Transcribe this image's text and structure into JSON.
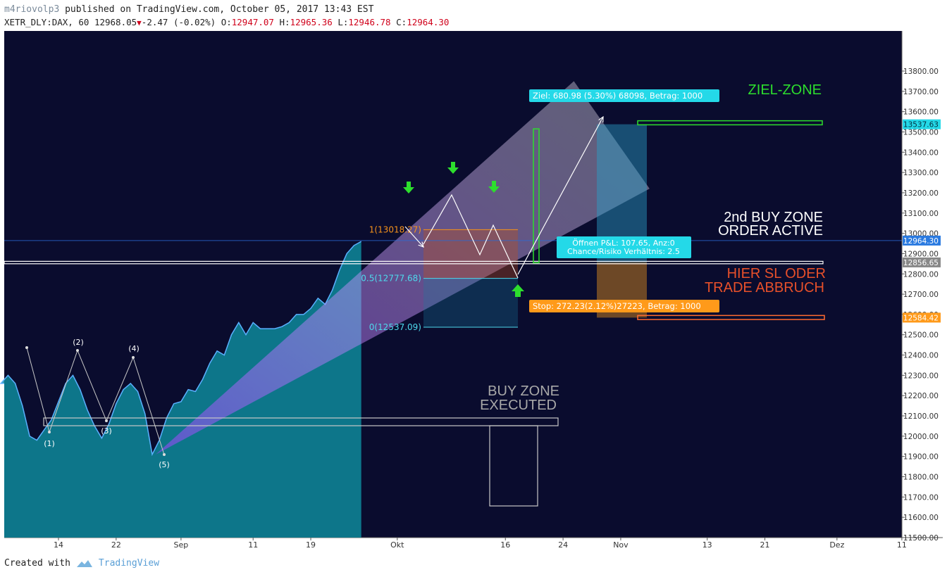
{
  "header": {
    "user": "m4riovolp3",
    "published_text": " published on TradingView.com, October 05, 2017 13:43 EST",
    "symbol": "XETR_DLY:DAX, 60",
    "last": "12968.05",
    "change": "-2.47 (-0.02%)",
    "o_label": "O:",
    "o_value": "12947.07",
    "h_label": "H:",
    "h_value": "12965.36",
    "l_label": "L:",
    "l_value": "12946.78",
    "c_label": "C:",
    "c_value": "12964.30"
  },
  "footer": {
    "created_with": "Created with",
    "brand": "TradingView"
  },
  "colors": {
    "background": "#0a0c2e",
    "area": "#0e8a9a",
    "fib_orange": "#f7931a",
    "fib_cyan": "#4dd9ec",
    "green": "#2dde2d",
    "stop": "#ff9a1a",
    "target": "#24d9e8"
  },
  "chart_data": {
    "type": "area",
    "title": "",
    "xlabel": "",
    "ylabel": "",
    "ylim": [
      11400,
      13900
    ],
    "price_ticks": [
      13800,
      13700,
      13600,
      13500,
      13400,
      13300,
      13200,
      13100,
      13000,
      12900,
      12800,
      12700,
      12600,
      12500,
      12400,
      12300,
      12200,
      12100,
      12000,
      11900,
      11800,
      11700,
      11600,
      11500
    ],
    "price_tick_labels": [
      "13800.00",
      "13700.00",
      "13600.00",
      "13500.00",
      "13400.00",
      "13300.00",
      "13200.00",
      "13100.00",
      "13000.00",
      "12900.00",
      "12800.00",
      "12700.00",
      "12600.00",
      "12500.00",
      "12400.00",
      "12300.00",
      "12200.00",
      "12100.00",
      "12000.00",
      "11900.00",
      "11800.00",
      "11700.00",
      "11600.00",
      "11500.00"
    ],
    "time_ticks": [
      {
        "label": "14",
        "day": 14
      },
      {
        "label": "22",
        "day": 22
      },
      {
        "label": "Sep",
        "day": 31
      },
      {
        "label": "11",
        "day": 41
      },
      {
        "label": "19",
        "day": 49
      },
      {
        "label": "Okt",
        "day": 61
      },
      {
        "label": "16",
        "day": 76
      },
      {
        "label": "24",
        "day": 84
      },
      {
        "label": "Nov",
        "day": 92
      },
      {
        "label": "13",
        "day": 104
      },
      {
        "label": "21",
        "day": 112
      },
      {
        "label": "Dez",
        "day": 122
      },
      {
        "label": "11",
        "day": 131
      }
    ],
    "series": [
      {
        "values": [
          [
            6,
            12260
          ],
          [
            7,
            12300
          ],
          [
            8,
            12260
          ],
          [
            9,
            12150
          ],
          [
            10,
            12000
          ],
          [
            11,
            11980
          ],
          [
            12,
            12030
          ],
          [
            13,
            12080
          ],
          [
            14,
            12170
          ],
          [
            15,
            12260
          ],
          [
            16,
            12300
          ],
          [
            17,
            12230
          ],
          [
            18,
            12130
          ],
          [
            19,
            12050
          ],
          [
            20,
            11990
          ],
          [
            21,
            12060
          ],
          [
            22,
            12160
          ],
          [
            23,
            12230
          ],
          [
            24,
            12260
          ],
          [
            25,
            12220
          ],
          [
            26,
            12110
          ],
          [
            27,
            11910
          ],
          [
            28,
            11980
          ],
          [
            29,
            12090
          ],
          [
            30,
            12160
          ],
          [
            31,
            12170
          ],
          [
            32,
            12230
          ],
          [
            33,
            12220
          ],
          [
            34,
            12280
          ],
          [
            35,
            12360
          ],
          [
            36,
            12420
          ],
          [
            37,
            12400
          ],
          [
            38,
            12500
          ],
          [
            39,
            12560
          ],
          [
            40,
            12500
          ],
          [
            41,
            12560
          ],
          [
            42,
            12530
          ],
          [
            43,
            12530
          ],
          [
            44,
            12530
          ],
          [
            45,
            12540
          ],
          [
            46,
            12560
          ],
          [
            47,
            12600
          ],
          [
            48,
            12600
          ],
          [
            49,
            12630
          ],
          [
            50,
            12680
          ],
          [
            51,
            12650
          ],
          [
            52,
            12720
          ],
          [
            53,
            12820
          ],
          [
            54,
            12900
          ],
          [
            55,
            12940
          ],
          [
            56,
            12960
          ]
        ]
      }
    ],
    "current_price": 12964.3,
    "labels": [
      {
        "text": "13537.63",
        "price": 13537.63
      },
      {
        "text": "12964.30",
        "price": 12964.3
      },
      {
        "text": "12856.65",
        "price": 12856.65
      },
      {
        "text": "12584.42",
        "price": 12584.42
      }
    ],
    "fib_levels": [
      {
        "label": "1(13018.27)",
        "price": 13018.27
      },
      {
        "label": "0.5(12777.68)",
        "price": 12777.68
      },
      {
        "label": "0(12537.09)",
        "price": 12537.09
      }
    ],
    "waves": [
      {
        "label": "(1)",
        "day": 11,
        "price": 11920
      },
      {
        "label": "(2)",
        "day": 16,
        "price": 12320
      },
      {
        "label": "(3)",
        "day": 20,
        "price": 11980
      },
      {
        "label": "(4)",
        "day": 24,
        "price": 12290
      },
      {
        "label": "(5)",
        "day": 27,
        "price": 11810
      }
    ],
    "zone_texts": {
      "ziel": "ZIEL-ZONE",
      "buy2_line1": "2nd BUY ZONE",
      "buy2_line2": "ORDER ACTIVE",
      "sl_line1": "HIER SL ODER",
      "sl_line2": "TRADE ABBRUCH",
      "exec_line1": "BUY ZONE",
      "exec_line2": "EXECUTED"
    },
    "target_label": "Ziel: 680.98 (5.30%) 68098, Betrag: 1000",
    "pnl_line1": "Öffnen P&L: 107.65, Anz:0",
    "pnl_line2": "Chance/Risiko Verhältnis: 2.5",
    "stop_label": "Stop: 272.23(2.12%)27223, Betrag: 1000"
  }
}
